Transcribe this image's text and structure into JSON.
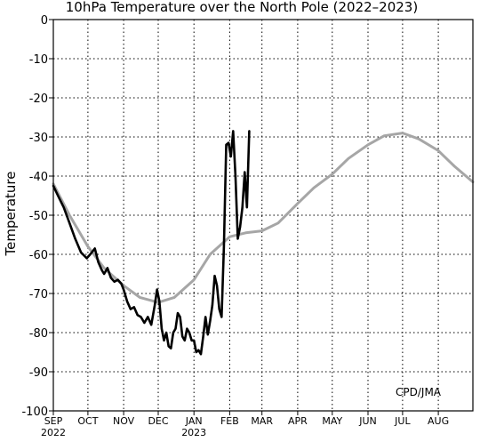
{
  "chart_data": {
    "type": "line",
    "title": "10hPa Temperature over the North Pole (2022–2023)",
    "ylabel": "Temperature",
    "xlabel": "",
    "credit": "CPD/JMA",
    "ylim": [
      -100,
      0
    ],
    "yticks": [
      0,
      -10,
      -20,
      -30,
      -40,
      -50,
      -60,
      -70,
      -80,
      -90,
      -100
    ],
    "xlim": [
      "2022-09-01",
      "2023-08-31"
    ],
    "xticks": [
      {
        "date": "2022-09-01",
        "label": "SEP",
        "sublabel": "2022"
      },
      {
        "date": "2022-10-01",
        "label": "OCT",
        "sublabel": ""
      },
      {
        "date": "2022-11-01",
        "label": "NOV",
        "sublabel": ""
      },
      {
        "date": "2022-12-01",
        "label": "DEC",
        "sublabel": ""
      },
      {
        "date": "2023-01-01",
        "label": "JAN",
        "sublabel": "2023"
      },
      {
        "date": "2023-02-01",
        "label": "FEB",
        "sublabel": ""
      },
      {
        "date": "2023-03-01",
        "label": "MAR",
        "sublabel": ""
      },
      {
        "date": "2023-04-01",
        "label": "APR",
        "sublabel": ""
      },
      {
        "date": "2023-05-01",
        "label": "MAY",
        "sublabel": ""
      },
      {
        "date": "2023-06-01",
        "label": "JUN",
        "sublabel": ""
      },
      {
        "date": "2023-07-01",
        "label": "JUL",
        "sublabel": ""
      },
      {
        "date": "2023-08-01",
        "label": "AUG",
        "sublabel": ""
      }
    ],
    "grid": true,
    "series": [
      {
        "color": "#a6a6a6",
        "x": [
          "2022-09-01",
          "2022-09-15",
          "2022-10-01",
          "2022-10-15",
          "2022-11-01",
          "2022-11-15",
          "2022-12-01",
          "2022-12-15",
          "2023-01-01",
          "2023-01-15",
          "2023-02-01",
          "2023-02-15",
          "2023-03-01",
          "2023-03-15",
          "2023-04-01",
          "2023-04-15",
          "2023-05-01",
          "2023-05-15",
          "2023-06-01",
          "2023-06-15",
          "2023-07-01",
          "2023-07-15",
          "2023-08-01",
          "2023-08-15",
          "2023-08-31"
        ],
        "y": [
          -42,
          -50,
          -58,
          -63.5,
          -68,
          -71,
          -72.3,
          -71,
          -66.5,
          -60,
          -55.5,
          -54.5,
          -54,
          -52,
          -47,
          -43,
          -39.5,
          -35.5,
          -32,
          -29.7,
          -29,
          -30.5,
          -33.5,
          -37.5,
          -41.5
        ]
      },
      {
        "color": "#000000",
        "x": [
          "2022-09-01",
          "2022-09-05",
          "2022-09-10",
          "2022-09-15",
          "2022-09-20",
          "2022-09-25",
          "2022-09-30",
          "2022-10-03",
          "2022-10-07",
          "2022-10-10",
          "2022-10-13",
          "2022-10-15",
          "2022-10-18",
          "2022-10-21",
          "2022-10-24",
          "2022-10-27",
          "2022-10-30",
          "2022-11-01",
          "2022-11-04",
          "2022-11-07",
          "2022-11-10",
          "2022-11-13",
          "2022-11-16",
          "2022-11-19",
          "2022-11-22",
          "2022-11-25",
          "2022-11-28",
          "2022-11-30",
          "2022-12-02",
          "2022-12-04",
          "2022-12-06",
          "2022-12-08",
          "2022-12-10",
          "2022-12-12",
          "2022-12-14",
          "2022-12-16",
          "2022-12-18",
          "2022-12-20",
          "2022-12-22",
          "2022-12-24",
          "2022-12-26",
          "2022-12-28",
          "2022-12-30",
          "2023-01-01",
          "2023-01-03",
          "2023-01-05",
          "2023-01-07",
          "2023-01-09",
          "2023-01-11",
          "2023-01-13",
          "2023-01-15",
          "2023-01-17",
          "2023-01-19",
          "2023-01-21",
          "2023-01-23",
          "2023-01-25",
          "2023-01-27",
          "2023-01-29",
          "2023-01-31",
          "2023-02-02",
          "2023-02-04",
          "2023-02-06",
          "2023-02-08",
          "2023-02-10",
          "2023-02-12",
          "2023-02-14",
          "2023-02-16",
          "2023-02-18"
        ],
        "y": [
          -42.5,
          -45,
          -48,
          -52,
          -56,
          -59.5,
          -61,
          -60,
          -58.5,
          -62,
          -64,
          -65,
          -63.5,
          -66,
          -67,
          -66.5,
          -67.5,
          -69,
          -72,
          -74,
          -73.5,
          -75.5,
          -76,
          -77.5,
          -76,
          -78,
          -73,
          -69,
          -72,
          -79,
          -82,
          -80,
          -83.5,
          -84,
          -80,
          -79,
          -75,
          -76,
          -81,
          -82,
          -79,
          -80,
          -82,
          -82,
          -85,
          -84.5,
          -85.5,
          -81,
          -76,
          -80.5,
          -77,
          -73,
          -65.5,
          -68,
          -74,
          -76,
          -58,
          -32,
          -31.5,
          -35,
          -28.5,
          -40,
          -56,
          -53,
          -48,
          -39,
          -48,
          -28.5
        ]
      }
    ]
  }
}
